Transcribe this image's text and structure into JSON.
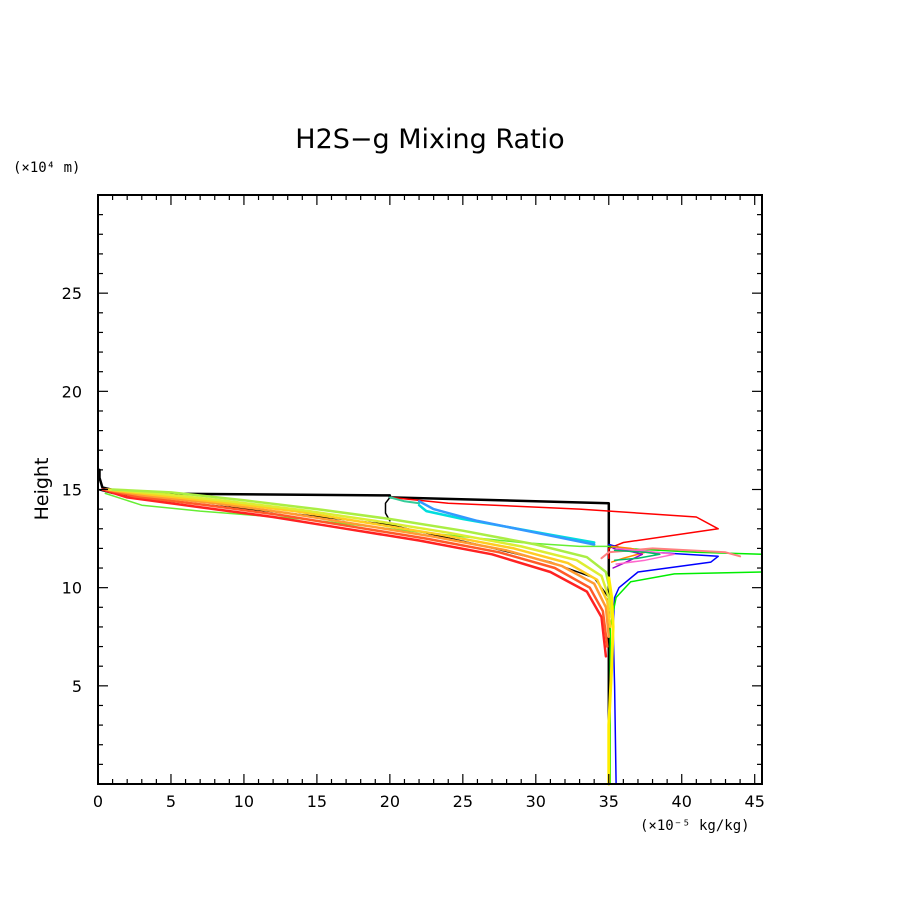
{
  "chart_data": {
    "type": "line",
    "title": "H2S−g Mixing Ratio",
    "xlabel": "",
    "ylabel": "Height",
    "x_unit": "(×10⁻⁵ kg/kg)",
    "y_unit": "(×10⁴ m)",
    "xlim": [
      0,
      45.5
    ],
    "ylim": [
      0,
      30
    ],
    "x_ticks": [
      0,
      5,
      10,
      15,
      20,
      25,
      30,
      35,
      40,
      45
    ],
    "y_ticks": [
      5,
      10,
      15,
      20,
      25
    ],
    "grid": false,
    "legend": "none",
    "series": [
      {
        "color": "#000000",
        "width": 2.5,
        "x": [
          35,
          35,
          35,
          20,
          20,
          2,
          0.3,
          0.1,
          0.1
        ],
        "y": [
          0,
          12.2,
          14.3,
          14.6,
          14.7,
          14.8,
          15.1,
          15.6,
          16
        ]
      },
      {
        "color": "#000000",
        "width": 1.5,
        "x": [
          35,
          35,
          34,
          31,
          26,
          20,
          13,
          5,
          1,
          0
        ],
        "y": [
          0,
          9.5,
          10.5,
          11.3,
          12.2,
          13.2,
          13.8,
          14.4,
          14.8,
          15
        ]
      },
      {
        "color": "#000000",
        "width": 1.5,
        "x": [
          20,
          19.7,
          19.7,
          20
        ],
        "y": [
          14.6,
          14.3,
          13.8,
          13.4
        ]
      },
      {
        "color": "#ff0000",
        "width": 1.5,
        "x": [
          35,
          35,
          36,
          42.5,
          41,
          33,
          24,
          20
        ],
        "y": [
          11.5,
          12,
          12.3,
          13,
          13.6,
          14,
          14.3,
          14.6
        ]
      },
      {
        "color": "#0000ff",
        "width": 1.5,
        "x": [
          35.5,
          35.4,
          35.3,
          35.4,
          35.7,
          37,
          42,
          42.5,
          38,
          36,
          35
        ],
        "y": [
          0,
          5,
          8,
          9.5,
          10,
          10.8,
          11.3,
          11.6,
          11.8,
          12,
          12.2
        ]
      },
      {
        "color": "#00ee00",
        "width": 1.5,
        "x": [
          35.1,
          35.1,
          35.5,
          36.5,
          39.5,
          45.5
        ],
        "y": [
          0,
          8,
          9.5,
          10.3,
          10.7,
          10.8
        ]
      },
      {
        "color": "#00ee00",
        "width": 1.5,
        "x": [
          35,
          36,
          41,
          45.5
        ],
        "y": [
          12.1,
          12,
          11.8,
          11.7
        ]
      },
      {
        "color": "#66ee33",
        "width": 1.5,
        "x": [
          35,
          33,
          31,
          29,
          25,
          20,
          14,
          7,
          3,
          0.5
        ],
        "y": [
          12.1,
          12.1,
          12.2,
          12.3,
          12.6,
          13,
          13.5,
          13.9,
          14.2,
          14.8
        ]
      },
      {
        "color": "#00dddd",
        "width": 2.5,
        "x": [
          22,
          22.5,
          25,
          28,
          31,
          34
        ],
        "y": [
          14.2,
          13.9,
          13.5,
          13.1,
          12.7,
          12.3
        ]
      },
      {
        "color": "#3399ff",
        "width": 2.5,
        "x": [
          22,
          22.5,
          23,
          24,
          26,
          30,
          34
        ],
        "y": [
          14.4,
          14.2,
          14,
          13.8,
          13.4,
          12.8,
          12.2
        ]
      },
      {
        "color": "#ff8080",
        "width": 2,
        "x": [
          34.5,
          35,
          38,
          43,
          44
        ],
        "y": [
          11.5,
          11.8,
          12,
          11.8,
          11.6
        ]
      },
      {
        "color": "#ff2222",
        "width": 2.5,
        "x": [
          34.8,
          34.5,
          33.5,
          31,
          27,
          22,
          17,
          12,
          7,
          2,
          0.3
        ],
        "y": [
          6.5,
          8.5,
          9.8,
          10.8,
          11.7,
          12.4,
          13,
          13.6,
          14.1,
          14.6,
          15
        ]
      },
      {
        "color": "#ff5a28",
        "width": 2.5,
        "x": [
          34.9,
          34.6,
          33.7,
          31.3,
          27.5,
          22.5,
          17.5,
          12.5,
          7.5,
          2.5,
          0.5
        ],
        "y": [
          7,
          8.8,
          10,
          11,
          11.8,
          12.5,
          13.1,
          13.7,
          14.2,
          14.65,
          15
        ]
      },
      {
        "color": "#ff9a33",
        "width": 2.5,
        "x": [
          35,
          34.8,
          34,
          31.8,
          28,
          23,
          18,
          13,
          8,
          3,
          0.6
        ],
        "y": [
          7.5,
          9,
          10.2,
          11.1,
          11.9,
          12.6,
          13.2,
          13.8,
          14.3,
          14.7,
          15
        ]
      },
      {
        "color": "#ffcc22",
        "width": 2.5,
        "x": [
          35.1,
          34.9,
          34.2,
          32.2,
          28.5,
          23.5,
          18.5,
          13.5,
          8.5,
          3.5,
          0.7
        ],
        "y": [
          8,
          9.3,
          10.4,
          11.25,
          12,
          12.7,
          13.3,
          13.9,
          14.35,
          14.75,
          15
        ]
      },
      {
        "color": "#ddee33",
        "width": 2.5,
        "x": [
          35.2,
          35,
          34.5,
          32.8,
          29,
          24,
          19,
          14,
          9,
          4,
          0.8
        ],
        "y": [
          8.5,
          9.5,
          10.6,
          11.4,
          12.1,
          12.8,
          13.4,
          13.95,
          14.4,
          14.8,
          15
        ]
      },
      {
        "color": "#aaee44",
        "width": 2.5,
        "x": [
          35.2,
          35.1,
          34.8,
          33.5,
          30,
          25,
          20,
          15,
          10,
          5,
          1
        ],
        "y": [
          9,
          9.8,
          10.8,
          11.55,
          12.2,
          12.9,
          13.5,
          14,
          14.45,
          14.85,
          15
        ]
      },
      {
        "color": "#ffee00",
        "width": 3,
        "x": [
          35,
          35,
          35.2,
          35.3,
          35.2,
          35
        ],
        "y": [
          0,
          3,
          6,
          8,
          9.5,
          10.5
        ]
      },
      {
        "color": "#ff8800",
        "width": 1.5,
        "x": [
          35.2,
          36,
          37.5,
          36.5,
          35.2
        ],
        "y": [
          11.3,
          11.5,
          11.8,
          12,
          12.1
        ]
      },
      {
        "color": "#9900cc",
        "width": 1.5,
        "x": [
          35.3,
          36.2,
          37.3,
          36.2,
          35.3
        ],
        "y": [
          11,
          11.3,
          11.7,
          11.9,
          12
        ]
      },
      {
        "color": "#ff66cc",
        "width": 1.5,
        "x": [
          35.5,
          37.5,
          39.5,
          37,
          35.5
        ],
        "y": [
          11.2,
          11.4,
          11.7,
          11.9,
          12
        ]
      },
      {
        "color": "#00bb66",
        "width": 1.5,
        "x": [
          35.4,
          37,
          38.5,
          37.5,
          35.4
        ],
        "y": [
          11.4,
          11.5,
          11.7,
          11.8,
          11.9
        ]
      },
      {
        "color": "#33cc99",
        "width": 2,
        "x": [
          20,
          20.5,
          21,
          21.5,
          22
        ],
        "y": [
          14.6,
          14.5,
          14.4,
          14.35,
          14.3
        ]
      }
    ]
  }
}
